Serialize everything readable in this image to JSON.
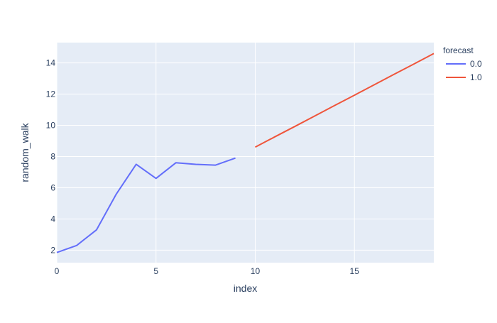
{
  "chart_data": {
    "type": "line",
    "xlabel": "index",
    "ylabel": "random_walk",
    "xlim": [
      0,
      19
    ],
    "ylim": [
      1.2,
      15.3
    ],
    "x_ticks": [
      0,
      5,
      10,
      15
    ],
    "y_ticks": [
      2,
      4,
      6,
      8,
      10,
      12,
      14
    ],
    "x_tick_labels": [
      "0",
      "5",
      "10",
      "15"
    ],
    "y_tick_labels": [
      "2",
      "4",
      "6",
      "8",
      "10",
      "12",
      "14"
    ],
    "grid": true,
    "legend": {
      "title": "forecast",
      "position": "top-right"
    },
    "series": [
      {
        "name": "0.0",
        "color": "#636efa",
        "x": [
          0,
          1,
          2,
          3,
          4,
          5,
          6,
          7,
          8,
          9
        ],
        "y": [
          1.85,
          2.3,
          3.3,
          5.6,
          7.5,
          6.6,
          7.6,
          7.5,
          7.45,
          7.9
        ]
      },
      {
        "name": "1.0",
        "color": "#ef553b",
        "x": [
          10,
          11,
          12,
          13,
          14,
          15,
          16,
          17,
          18,
          19
        ],
        "y": [
          8.6,
          9.27,
          9.93,
          10.6,
          11.27,
          11.93,
          12.6,
          13.27,
          13.93,
          14.6
        ]
      }
    ],
    "plot_bg": "#e5ecf6",
    "grid_color": "#ffffff",
    "text_color": "#2a3f5f"
  }
}
